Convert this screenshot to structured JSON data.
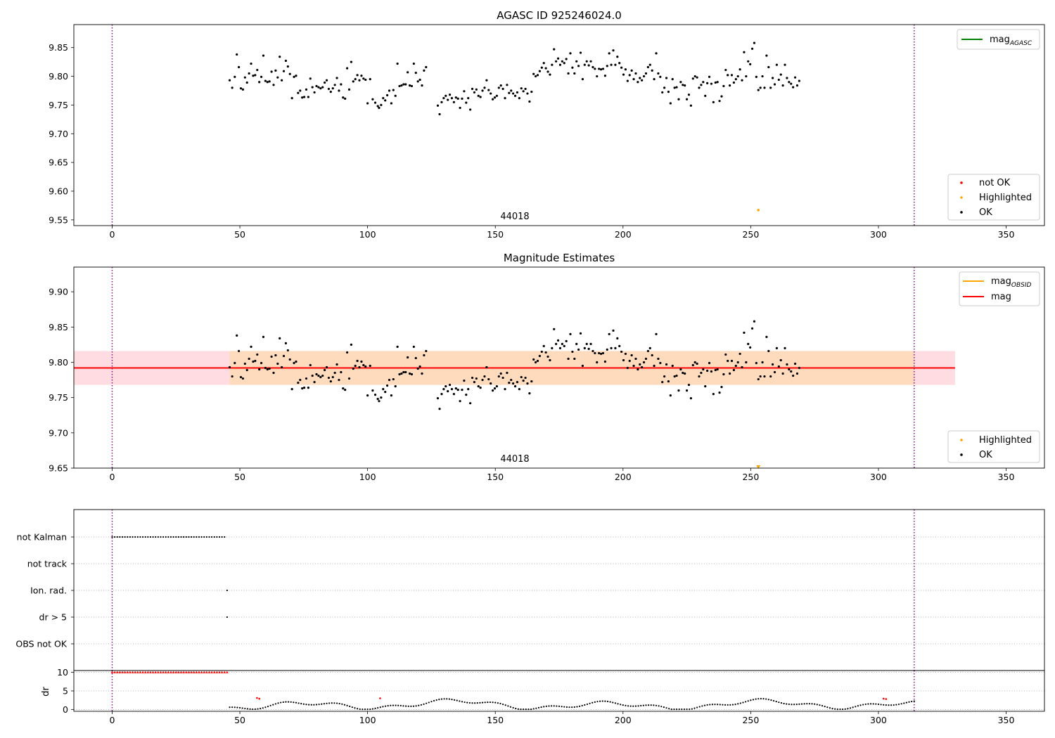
{
  "figure": {
    "title": "AGASC ID 925246024.0",
    "obsid_label": "44018"
  },
  "colors": {
    "ok": "#000000",
    "not_ok": "#ff0000",
    "highlighted": "#ffa500",
    "mag_agasc": "#008000",
    "mag_obsid": "#ffa500",
    "mag": "#ff0000",
    "obs_boundary": "#800080",
    "band_outer": "#ffc0cb",
    "band_inner": "#ffdab9"
  },
  "chart_data": [
    {
      "id": "top",
      "type": "scatter",
      "title": "",
      "xlim": [
        -15,
        365
      ],
      "ylim": [
        9.54,
        9.89
      ],
      "xticks": [
        0,
        50,
        100,
        150,
        200,
        250,
        300,
        350
      ],
      "yticks": [
        9.55,
        9.6,
        9.65,
        9.7,
        9.75,
        9.8,
        9.85
      ],
      "obs_boundaries": [
        0,
        314
      ],
      "legend_lines": [
        {
          "name": "mag",
          "sub": "AGASC",
          "color_key": "mag_agasc"
        }
      ],
      "legend_points": [
        {
          "name": "not OK",
          "color_key": "not_ok"
        },
        {
          "name": "Highlighted",
          "color_key": "highlighted"
        },
        {
          "name": "OK",
          "color_key": "ok"
        }
      ],
      "highlighted": [
        [
          253,
          9.567
        ]
      ],
      "ok_points": [
        [
          46.0,
          9.793
        ],
        [
          47.0,
          9.78
        ],
        [
          48.0,
          9.799
        ],
        [
          48.8,
          9.838
        ],
        [
          49.6,
          9.816
        ],
        [
          50.4,
          9.779
        ],
        [
          51.2,
          9.777
        ],
        [
          52.0,
          9.798
        ],
        [
          52.8,
          9.789
        ],
        [
          53.6,
          9.805
        ],
        [
          54.4,
          9.822
        ],
        [
          55.2,
          9.801
        ],
        [
          56.0,
          9.802
        ],
        [
          56.8,
          9.811
        ],
        [
          57.6,
          9.79
        ],
        [
          58.4,
          9.799
        ],
        [
          59.2,
          9.836
        ],
        [
          60.0,
          9.792
        ],
        [
          60.8,
          9.79
        ],
        [
          61.6,
          9.791
        ],
        [
          62.4,
          9.808
        ],
        [
          63.2,
          9.785
        ],
        [
          64.0,
          9.81
        ],
        [
          64.8,
          9.798
        ],
        [
          65.6,
          9.834
        ],
        [
          66.4,
          9.793
        ],
        [
          67.2,
          9.809
        ],
        [
          68.0,
          9.827
        ],
        [
          68.8,
          9.817
        ],
        [
          69.6,
          9.804
        ],
        [
          70.4,
          9.762
        ],
        [
          71.2,
          9.799
        ],
        [
          72.0,
          9.801
        ],
        [
          72.8,
          9.771
        ],
        [
          73.6,
          9.775
        ],
        [
          74.4,
          9.763
        ],
        [
          75.2,
          9.764
        ],
        [
          76.0,
          9.777
        ],
        [
          76.8,
          9.764
        ],
        [
          77.6,
          9.796
        ],
        [
          78.4,
          9.781
        ],
        [
          79.2,
          9.772
        ],
        [
          80.0,
          9.783
        ],
        [
          80.8,
          9.781
        ],
        [
          81.6,
          9.779
        ],
        [
          82.4,
          9.781
        ],
        [
          83.2,
          9.789
        ],
        [
          84.0,
          9.793
        ],
        [
          84.8,
          9.778
        ],
        [
          85.6,
          9.773
        ],
        [
          86.4,
          9.779
        ],
        [
          87.2,
          9.785
        ],
        [
          88.0,
          9.797
        ],
        [
          88.8,
          9.775
        ],
        [
          89.6,
          9.786
        ],
        [
          90.4,
          9.763
        ],
        [
          91.2,
          9.761
        ],
        [
          92.0,
          9.814
        ],
        [
          92.8,
          9.777
        ],
        [
          93.6,
          9.825
        ],
        [
          94.4,
          9.791
        ],
        [
          95.2,
          9.795
        ],
        [
          96.0,
          9.802
        ],
        [
          96.8,
          9.793
        ],
        [
          97.6,
          9.801
        ],
        [
          98.4,
          9.796
        ],
        [
          99.2,
          9.794
        ],
        [
          100.0,
          9.753
        ],
        [
          101.0,
          9.795
        ],
        [
          102.0,
          9.76
        ],
        [
          103.0,
          9.754
        ],
        [
          104.0,
          9.748
        ],
        [
          104.5,
          9.745
        ],
        [
          105.3,
          9.75
        ],
        [
          106.1,
          9.762
        ],
        [
          106.9,
          9.758
        ],
        [
          107.7,
          9.767
        ],
        [
          108.5,
          9.775
        ],
        [
          109.3,
          9.753
        ],
        [
          110.1,
          9.776
        ],
        [
          110.9,
          9.766
        ],
        [
          111.7,
          9.822
        ],
        [
          112.5,
          9.783
        ],
        [
          113.3,
          9.784
        ],
        [
          114.1,
          9.786
        ],
        [
          114.9,
          9.786
        ],
        [
          115.7,
          9.807
        ],
        [
          116.5,
          9.784
        ],
        [
          117.3,
          9.783
        ],
        [
          118.1,
          9.822
        ],
        [
          118.9,
          9.806
        ],
        [
          119.7,
          9.791
        ],
        [
          120.5,
          9.794
        ],
        [
          121.3,
          9.784
        ],
        [
          122.1,
          9.81
        ],
        [
          122.9,
          9.816
        ],
        [
          127.5,
          9.749
        ],
        [
          128.2,
          9.734
        ],
        [
          129.0,
          9.755
        ],
        [
          129.8,
          9.762
        ],
        [
          130.6,
          9.766
        ],
        [
          131.4,
          9.759
        ],
        [
          132.2,
          9.768
        ],
        [
          133.0,
          9.762
        ],
        [
          133.8,
          9.755
        ],
        [
          134.6,
          9.763
        ],
        [
          135.4,
          9.761
        ],
        [
          136.2,
          9.745
        ],
        [
          137.0,
          9.761
        ],
        [
          137.8,
          9.774
        ],
        [
          138.6,
          9.754
        ],
        [
          139.4,
          9.762
        ],
        [
          140.2,
          9.742
        ],
        [
          141.0,
          9.778
        ],
        [
          141.8,
          9.772
        ],
        [
          142.6,
          9.777
        ],
        [
          143.4,
          9.766
        ],
        [
          144.2,
          9.764
        ],
        [
          145.0,
          9.775
        ],
        [
          145.8,
          9.78
        ],
        [
          146.6,
          9.793
        ],
        [
          147.4,
          9.776
        ],
        [
          148.2,
          9.77
        ],
        [
          149.0,
          9.76
        ],
        [
          149.8,
          9.763
        ],
        [
          150.6,
          9.766
        ],
        [
          151.4,
          9.78
        ],
        [
          152.2,
          9.784
        ],
        [
          153.0,
          9.778
        ],
        [
          153.8,
          9.762
        ],
        [
          154.6,
          9.785
        ],
        [
          155.4,
          9.771
        ],
        [
          156.2,
          9.775
        ],
        [
          157.0,
          9.77
        ],
        [
          157.8,
          9.766
        ],
        [
          158.6,
          9.772
        ],
        [
          159.4,
          9.762
        ],
        [
          160.2,
          9.779
        ],
        [
          161.0,
          9.774
        ],
        [
          161.8,
          9.778
        ],
        [
          162.6,
          9.77
        ],
        [
          163.4,
          9.756
        ],
        [
          164.2,
          9.773
        ],
        [
          165.0,
          9.804
        ],
        [
          165.8,
          9.8
        ],
        [
          166.6,
          9.802
        ],
        [
          167.4,
          9.809
        ],
        [
          168.2,
          9.815
        ],
        [
          169.0,
          9.823
        ],
        [
          169.8,
          9.814
        ],
        [
          170.6,
          9.808
        ],
        [
          171.4,
          9.803
        ],
        [
          172.2,
          9.82
        ],
        [
          173.0,
          9.847
        ],
        [
          173.8,
          9.826
        ],
        [
          174.6,
          9.831
        ],
        [
          175.4,
          9.82
        ],
        [
          176.2,
          9.826
        ],
        [
          177.0,
          9.823
        ],
        [
          177.8,
          9.83
        ],
        [
          178.6,
          9.805
        ],
        [
          179.4,
          9.84
        ],
        [
          180.2,
          9.815
        ],
        [
          181.0,
          9.805
        ],
        [
          181.8,
          9.826
        ],
        [
          182.6,
          9.818
        ],
        [
          183.4,
          9.841
        ],
        [
          184.2,
          9.795
        ],
        [
          185.0,
          9.82
        ],
        [
          185.8,
          9.826
        ],
        [
          186.6,
          9.819
        ],
        [
          187.4,
          9.826
        ],
        [
          188.2,
          9.816
        ],
        [
          189.0,
          9.813
        ],
        [
          189.8,
          9.8
        ],
        [
          190.6,
          9.813
        ],
        [
          191.4,
          9.812
        ],
        [
          192.2,
          9.813
        ],
        [
          193.0,
          9.801
        ],
        [
          193.8,
          9.818
        ],
        [
          194.6,
          9.84
        ],
        [
          195.4,
          9.82
        ],
        [
          196.2,
          9.845
        ],
        [
          197.0,
          9.82
        ],
        [
          197.8,
          9.834
        ],
        [
          198.6,
          9.823
        ],
        [
          199.4,
          9.815
        ],
        [
          200.2,
          9.803
        ],
        [
          201.0,
          9.812
        ],
        [
          201.8,
          9.792
        ],
        [
          202.6,
          9.802
        ],
        [
          203.4,
          9.81
        ],
        [
          204.2,
          9.795
        ],
        [
          205.0,
          9.805
        ],
        [
          205.8,
          9.79
        ],
        [
          206.6,
          9.797
        ],
        [
          207.4,
          9.793
        ],
        [
          208.2,
          9.8
        ],
        [
          209.0,
          9.805
        ],
        [
          209.8,
          9.816
        ],
        [
          210.6,
          9.82
        ],
        [
          211.4,
          9.81
        ],
        [
          212.2,
          9.795
        ],
        [
          213.0,
          9.84
        ],
        [
          213.8,
          9.805
        ],
        [
          214.6,
          9.799
        ],
        [
          215.4,
          9.772
        ],
        [
          216.2,
          9.78
        ],
        [
          217.0,
          9.797
        ],
        [
          217.8,
          9.773
        ],
        [
          218.6,
          9.753
        ],
        [
          219.4,
          9.795
        ],
        [
          220.2,
          9.78
        ],
        [
          221.0,
          9.781
        ],
        [
          221.8,
          9.76
        ],
        [
          222.6,
          9.79
        ],
        [
          223.4,
          9.785
        ],
        [
          224.2,
          9.784
        ],
        [
          225.0,
          9.76
        ],
        [
          225.8,
          9.768
        ],
        [
          226.6,
          9.749
        ],
        [
          227.4,
          9.796
        ],
        [
          228.2,
          9.8
        ],
        [
          229.0,
          9.798
        ],
        [
          229.8,
          9.78
        ],
        [
          230.6,
          9.785
        ],
        [
          231.4,
          9.79
        ],
        [
          232.2,
          9.766
        ],
        [
          233.0,
          9.788
        ],
        [
          233.8,
          9.799
        ],
        [
          234.6,
          9.787
        ],
        [
          235.4,
          9.755
        ],
        [
          236.2,
          9.789
        ],
        [
          237.0,
          9.79
        ],
        [
          237.8,
          9.757
        ],
        [
          238.6,
          9.765
        ],
        [
          239.4,
          9.783
        ],
        [
          240.2,
          9.811
        ],
        [
          241.0,
          9.802
        ],
        [
          241.8,
          9.784
        ],
        [
          242.6,
          9.802
        ],
        [
          243.4,
          9.789
        ],
        [
          244.2,
          9.795
        ],
        [
          245.0,
          9.8
        ],
        [
          245.8,
          9.812
        ],
        [
          246.6,
          9.793
        ],
        [
          247.4,
          9.842
        ],
        [
          248.2,
          9.8
        ],
        [
          249.0,
          9.826
        ],
        [
          249.8,
          9.821
        ],
        [
          250.6,
          9.848
        ],
        [
          251.4,
          9.858
        ],
        [
          252.2,
          9.799
        ],
        [
          253.0,
          9.776
        ],
        [
          253.8,
          9.78
        ],
        [
          254.6,
          9.8
        ],
        [
          255.4,
          9.78
        ],
        [
          256.2,
          9.836
        ],
        [
          257.0,
          9.816
        ],
        [
          257.8,
          9.78
        ],
        [
          258.6,
          9.797
        ],
        [
          259.4,
          9.786
        ],
        [
          260.2,
          9.82
        ],
        [
          261.0,
          9.794
        ],
        [
          261.8,
          9.803
        ],
        [
          262.6,
          9.784
        ],
        [
          263.4,
          9.82
        ],
        [
          264.2,
          9.797
        ],
        [
          265.0,
          9.79
        ],
        [
          265.8,
          9.787
        ],
        [
          266.6,
          9.781
        ],
        [
          267.4,
          9.798
        ],
        [
          268.2,
          9.784
        ],
        [
          269.0,
          9.792
        ]
      ]
    },
    {
      "id": "middle",
      "type": "scatter",
      "title": "Magnitude Estimates",
      "xlim": [
        -15,
        365
      ],
      "ylim": [
        9.65,
        9.935
      ],
      "xticks": [
        0,
        50,
        100,
        150,
        200,
        250,
        300,
        350
      ],
      "yticks": [
        9.65,
        9.7,
        9.75,
        9.8,
        9.85,
        9.9
      ],
      "obs_boundaries": [
        0,
        314
      ],
      "mag_value": 9.792,
      "band_outer": {
        "y": [
          9.768,
          9.816
        ],
        "x": [
          -15,
          330
        ]
      },
      "band_inner": {
        "y": [
          9.768,
          9.816
        ],
        "x": [
          46,
          314
        ]
      },
      "legend_lines": [
        {
          "name": "mag",
          "sub": "OBSID",
          "color_key": "mag_obsid"
        },
        {
          "name": "mag",
          "sub": "",
          "color_key": "mag"
        }
      ],
      "legend_points": [
        {
          "name": "Highlighted",
          "color_key": "highlighted"
        },
        {
          "name": "OK",
          "color_key": "ok"
        }
      ],
      "highlighted": [
        [
          253,
          9.652
        ]
      ]
    },
    {
      "id": "flags",
      "type": "scatter",
      "xlim": [
        -15,
        365
      ],
      "categories": [
        "not Kalman",
        "not track",
        "Ion. rad.",
        "dr > 5",
        "OBS not OK"
      ],
      "not_kalman_x_range": [
        0,
        44.5
      ],
      "ion_rad_x": [
        45
      ],
      "dr_gt5_x": [
        45
      ]
    },
    {
      "id": "dr",
      "type": "scatter",
      "ylabel": "dr",
      "xlim": [
        -15,
        365
      ],
      "ylim": [
        -0.5,
        10.5
      ],
      "yticks": [
        0,
        5,
        10
      ],
      "xticks": [
        0,
        50,
        100,
        150,
        200,
        250,
        300,
        350
      ],
      "red_band": {
        "x": [
          0,
          45
        ],
        "y": 10
      },
      "red_points": [
        [
          56.7,
          3.1
        ],
        [
          57.6,
          2.9
        ],
        [
          104.9,
          3.0
        ],
        [
          302.0,
          2.9
        ],
        [
          303.0,
          2.8
        ]
      ]
    }
  ]
}
